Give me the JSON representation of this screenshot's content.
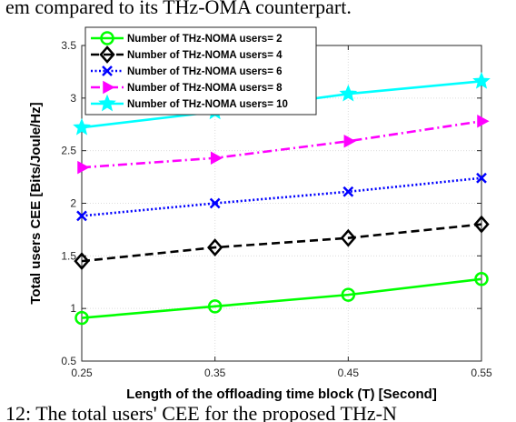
{
  "caption_top": "em compared to its THz-OMA counterpart.",
  "caption_bottom": "12: The total users' CEE for the proposed THz-N",
  "chart_data": {
    "type": "line",
    "xlabel": "Length of the offloading time block (T) [Second]",
    "ylabel": "Total users CEE [Bits/Joule/Hz]",
    "x": [
      0.25,
      0.35,
      0.45,
      0.55
    ],
    "xlim": [
      0.25,
      0.55
    ],
    "ylim": [
      0.5,
      3.5
    ],
    "xticks": [
      "0.25",
      "0.35",
      "0.45",
      "0.55"
    ],
    "yticks": [
      "0.5",
      "1",
      "1.5",
      "2",
      "2.5",
      "3",
      "3.5"
    ],
    "grid": true,
    "legend_position": "top-left",
    "series": [
      {
        "name": "Number of THz-NOMA users= 2",
        "values": [
          0.91,
          1.02,
          1.13,
          1.28
        ],
        "color": "#00ff00",
        "line_style": "solid",
        "marker": "circle"
      },
      {
        "name": "Number of THz-NOMA users= 4",
        "values": [
          1.45,
          1.58,
          1.67,
          1.8
        ],
        "color": "#000000",
        "line_style": "dashed",
        "marker": "diamond"
      },
      {
        "name": "Number of THz-NOMA users= 6",
        "values": [
          1.88,
          2.0,
          2.11,
          2.24
        ],
        "color": "#0000ff",
        "line_style": "dotted",
        "marker": "x"
      },
      {
        "name": "Number of THz-NOMA users= 8",
        "values": [
          2.34,
          2.43,
          2.59,
          2.78
        ],
        "color": "#ff00ff",
        "line_style": "dashdot",
        "marker": "triangle"
      },
      {
        "name": "Number of THz-NOMA users= 10",
        "values": [
          2.72,
          2.87,
          3.04,
          3.16
        ],
        "color": "#00ffff",
        "line_style": "solid",
        "marker": "star"
      }
    ]
  }
}
